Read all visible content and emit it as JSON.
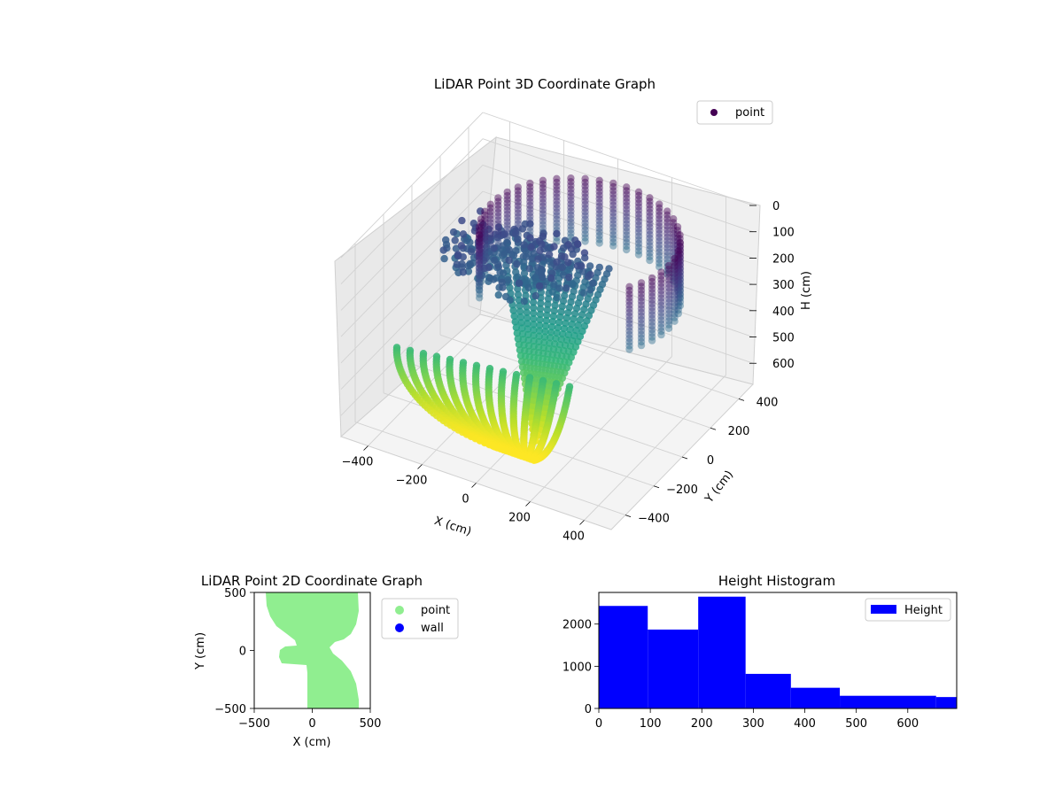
{
  "chart_data": [
    {
      "type": "scatter",
      "projection": "3d",
      "title": "LiDAR Point 3D Coordinate Graph",
      "xlabel": "X (cm)",
      "ylabel": "Y (cm)",
      "zlabel": "H (cm)",
      "xticks": [
        "−400",
        "−200",
        "0",
        "200",
        "400"
      ],
      "yticks": [
        "−400",
        "−200",
        "0",
        "200",
        "400"
      ],
      "zticks": [
        "0",
        "100",
        "200",
        "300",
        "400",
        "500",
        "600"
      ],
      "zlim": [
        0,
        680
      ],
      "z_inverted": true,
      "colormap": "viridis",
      "grid": true,
      "legend": {
        "location": "upper-right",
        "entries": [
          "point"
        ]
      },
      "series": [
        {
          "name": "point",
          "color": "#440154"
        }
      ]
    },
    {
      "type": "scatter",
      "title": "LiDAR Point 2D Coordinate Graph",
      "xlabel": "X (cm)",
      "ylabel": "Y (cm)",
      "xlim": [
        -500,
        500
      ],
      "ylim": [
        -500,
        500
      ],
      "xticks": [
        "−500",
        "0",
        "500"
      ],
      "yticks": [
        "−500",
        "0",
        "500"
      ],
      "legend": {
        "location": "outside-right",
        "entries": [
          "point",
          "wall"
        ]
      },
      "series": [
        {
          "name": "point",
          "color": "#90ee90"
        },
        {
          "name": "wall",
          "color": "#0000ff"
        }
      ]
    },
    {
      "type": "bar",
      "histogram": true,
      "title": "Height Histogram",
      "xlim": [
        0,
        695
      ],
      "ylim": [
        0,
        2750
      ],
      "xticks": [
        "0",
        "100",
        "200",
        "300",
        "400",
        "500",
        "600"
      ],
      "yticks": [
        "0",
        "1000",
        "2000"
      ],
      "bins": [
        {
          "x0": 0,
          "x1": 95,
          "count": 2430
        },
        {
          "x0": 95,
          "x1": 193,
          "count": 1870
        },
        {
          "x0": 193,
          "x1": 285,
          "count": 2650
        },
        {
          "x0": 285,
          "x1": 373,
          "count": 820
        },
        {
          "x0": 373,
          "x1": 468,
          "count": 490
        },
        {
          "x0": 468,
          "x1": 655,
          "count": 300
        },
        {
          "x0": 655,
          "x1": 695,
          "count": 270
        }
      ],
      "legend": {
        "location": "upper-right",
        "entries": [
          "Height"
        ]
      },
      "series": [
        {
          "name": "Height",
          "color": "#0000ff"
        }
      ]
    }
  ]
}
